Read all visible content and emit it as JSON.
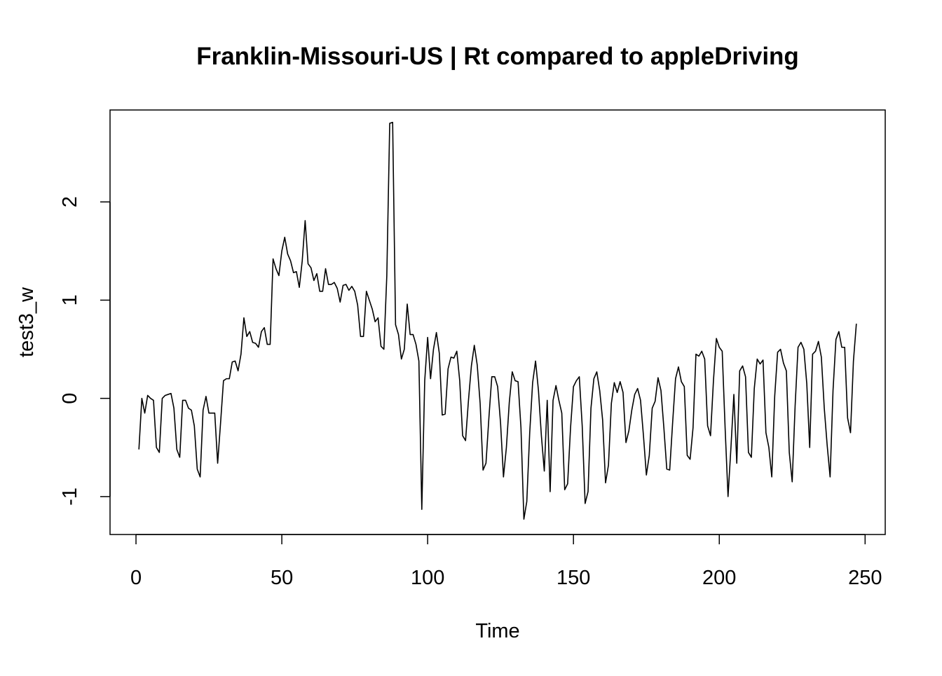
{
  "chart_data": {
    "type": "line",
    "title": "Franklin-Missouri-US | Rt compared to appleDriving",
    "xlabel": "Time",
    "ylabel": "test3_w",
    "xlim": [
      -8.9,
      256.9
    ],
    "ylim": [
      -1.386,
      2.936
    ],
    "x_ticks": [
      0,
      50,
      100,
      150,
      200,
      250
    ],
    "x_tick_labels": [
      "0",
      "50",
      "100",
      "150",
      "200",
      "250"
    ],
    "y_ticks": [
      -1,
      0,
      1,
      2
    ],
    "y_tick_labels": [
      "-1",
      "0",
      "1",
      "2"
    ],
    "grid": false,
    "legend": "none",
    "line_color": "#000000",
    "x_start": 1,
    "values": [
      -0.52,
      0.0,
      -0.15,
      0.03,
      0.0,
      -0.02,
      -0.5,
      -0.55,
      0.0,
      0.03,
      0.04,
      0.05,
      -0.1,
      -0.52,
      -0.6,
      -0.02,
      -0.02,
      -0.1,
      -0.12,
      -0.28,
      -0.72,
      -0.8,
      -0.12,
      0.02,
      -0.15,
      -0.15,
      -0.15,
      -0.66,
      -0.25,
      0.18,
      0.2,
      0.2,
      0.37,
      0.38,
      0.28,
      0.45,
      0.82,
      0.63,
      0.68,
      0.57,
      0.56,
      0.52,
      0.68,
      0.72,
      0.55,
      0.55,
      1.42,
      1.32,
      1.25,
      1.5,
      1.64,
      1.47,
      1.4,
      1.28,
      1.29,
      1.13,
      1.4,
      1.81,
      1.37,
      1.33,
      1.2,
      1.27,
      1.09,
      1.09,
      1.32,
      1.16,
      1.16,
      1.18,
      1.12,
      0.98,
      1.15,
      1.16,
      1.1,
      1.14,
      1.09,
      0.95,
      0.63,
      0.63,
      1.09,
      1.0,
      0.91,
      0.78,
      0.82,
      0.53,
      0.5,
      1.25,
      2.8,
      2.81,
      0.75,
      0.65,
      0.4,
      0.5,
      0.96,
      0.65,
      0.65,
      0.55,
      0.38,
      -1.13,
      0.18,
      0.62,
      0.2,
      0.5,
      0.67,
      0.46,
      -0.17,
      -0.16,
      0.3,
      0.42,
      0.41,
      0.48,
      0.18,
      -0.38,
      -0.43,
      -0.02,
      0.33,
      0.54,
      0.34,
      -0.05,
      -0.73,
      -0.66,
      -0.2,
      0.22,
      0.22,
      0.12,
      -0.25,
      -0.8,
      -0.5,
      -0.04,
      0.27,
      0.18,
      0.17,
      -0.3,
      -1.23,
      -1.05,
      -0.35,
      0.16,
      0.38,
      0.08,
      -0.38,
      -0.74,
      -0.02,
      -0.95,
      -0.02,
      0.13,
      -0.02,
      -0.15,
      -0.93,
      -0.87,
      -0.3,
      0.12,
      0.18,
      0.22,
      -0.28,
      -1.07,
      -0.95,
      -0.1,
      0.2,
      0.27,
      0.08,
      -0.22,
      -0.86,
      -0.68,
      -0.05,
      0.16,
      0.06,
      0.17,
      0.06,
      -0.45,
      -0.33,
      -0.12,
      0.04,
      0.1,
      -0.02,
      -0.38,
      -0.78,
      -0.58,
      -0.1,
      -0.03,
      0.21,
      0.08,
      -0.3,
      -0.72,
      -0.73,
      -0.25,
      0.2,
      0.32,
      0.17,
      0.12,
      -0.58,
      -0.62,
      -0.3,
      0.45,
      0.43,
      0.48,
      0.4,
      -0.28,
      -0.38,
      0.18,
      0.61,
      0.52,
      0.48,
      -0.3,
      -1.0,
      -0.5,
      0.04,
      -0.66,
      0.28,
      0.33,
      0.22,
      -0.55,
      -0.6,
      0.1,
      0.4,
      0.35,
      0.39,
      -0.35,
      -0.5,
      -0.8,
      0.02,
      0.47,
      0.5,
      0.36,
      0.28,
      -0.55,
      -0.85,
      -0.08,
      0.52,
      0.57,
      0.5,
      0.15,
      -0.5,
      0.45,
      0.48,
      0.58,
      0.42,
      -0.1,
      -0.48,
      -0.8,
      0.08,
      0.6,
      0.68,
      0.52,
      0.52,
      -0.2,
      -0.35,
      0.38,
      0.76
    ]
  }
}
